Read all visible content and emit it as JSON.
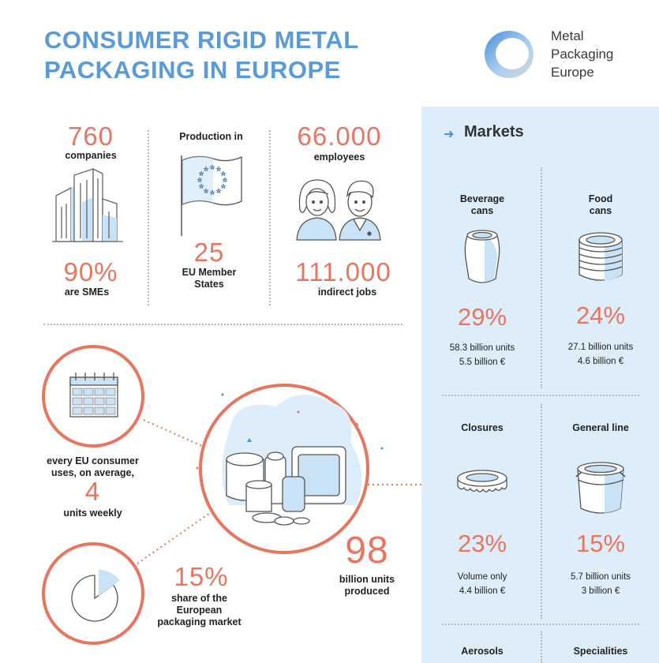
{
  "header": {
    "title_line1": "CONSUMER RIGID METAL",
    "title_line2": "PACKAGING IN EUROPE",
    "logo_line1": "Metal",
    "logo_line2": "Packaging",
    "logo_line3": "Europe"
  },
  "stats": {
    "companies_value": "760",
    "companies_label": "companies",
    "smes_value": "90%",
    "smes_label": "are SMEs",
    "production_label": "Production in",
    "states_value": "25",
    "states_label_line1": "EU Member",
    "states_label_line2": "States",
    "employees_value": "66.000",
    "employees_label": "employees",
    "indirect_value": "111.000",
    "indirect_label": "indirect jobs"
  },
  "consumption": {
    "line1": "every EU consumer",
    "line2": "uses, on average,",
    "value": "4",
    "line3": "units weekly",
    "share_value": "15%",
    "share_line1": "share of the",
    "share_line2": "European",
    "share_line3": "packaging market",
    "share_fraction": 0.15,
    "produced_value": "98",
    "produced_line1": "billion units",
    "produced_line2": "produced"
  },
  "markets": {
    "title": "Markets",
    "items": [
      {
        "label_line1": "Beverage",
        "label_line2": "cans",
        "pct": "29%",
        "sub1": "58.3 billion units",
        "sub2": "5.5 billion €"
      },
      {
        "label_line1": "Food",
        "label_line2": "cans",
        "pct": "24%",
        "sub1": "27.1 billion units",
        "sub2": "4.6 billion €"
      },
      {
        "label_line1": "Closures",
        "label_line2": "",
        "pct": "23%",
        "sub1": "Volume only",
        "sub2": "4.4 billion €"
      },
      {
        "label_line1": "General line",
        "label_line2": "",
        "pct": "15%",
        "sub1": "5.7 billion units",
        "sub2": "3 billion €"
      },
      {
        "label_line1": "Aerosols",
        "label_line2": "",
        "pct": "",
        "sub1": "",
        "sub2": ""
      },
      {
        "label_line1": "Specialities",
        "label_line2": "",
        "pct": "",
        "sub1": "",
        "sub2": ""
      }
    ]
  },
  "colors": {
    "title_blue": "#5b9bd5",
    "accent_coral": "#e87560",
    "panel_blue": "#ddeefa",
    "icon_blue": "#c9e2f5"
  }
}
